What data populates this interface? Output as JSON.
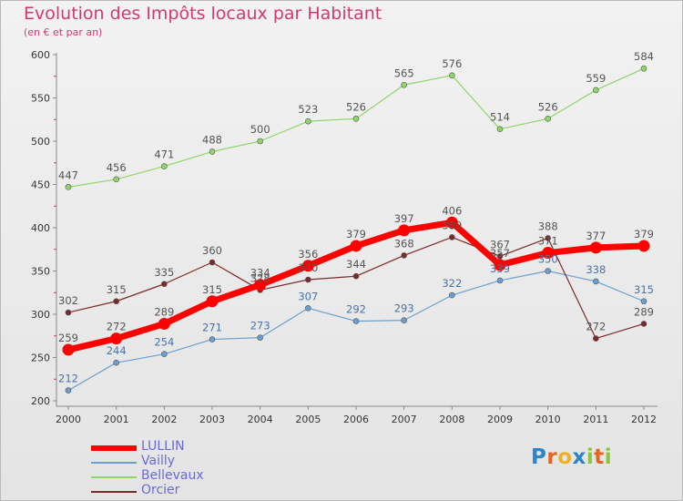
{
  "header": {
    "title": "Evolution des Impôts locaux par Habitant",
    "subtitle": "(en € et par an)"
  },
  "logo": {
    "letters": [
      "P",
      "r",
      "o",
      "x",
      "i",
      "t",
      "i"
    ],
    "colors": [
      "#2f83c9",
      "#e7611f",
      "#f0b120",
      "#2f83c9",
      "#8cc43e",
      "#e7611f",
      "#8cc43e"
    ]
  },
  "chart_data": {
    "type": "line",
    "title": "Evolution des Impôts locaux par Habitant",
    "subtitle": "(en € et par an)",
    "xlabel": "",
    "ylabel": "",
    "categories": [
      "2000",
      "2001",
      "2002",
      "2003",
      "2004",
      "2005",
      "2006",
      "2007",
      "2008",
      "2009",
      "2010",
      "2011",
      "2012"
    ],
    "ylim": [
      200,
      600
    ],
    "yticks": [
      200,
      250,
      300,
      350,
      400,
      450,
      500,
      550,
      600
    ],
    "grid": false,
    "legend_position": "bottom-left",
    "series": [
      {
        "name": "LULLIN",
        "color": "#ff0000",
        "values": [
          259,
          272,
          289,
          315,
          334,
          356,
          379,
          397,
          406,
          357,
          371,
          377,
          379
        ]
      },
      {
        "name": "Vailly",
        "color": "#6a9fd1",
        "values": [
          212,
          244,
          254,
          271,
          273,
          307,
          292,
          293,
          322,
          339,
          350,
          338,
          315
        ]
      },
      {
        "name": "Bellevaux",
        "color": "#8fd669",
        "values": [
          447,
          456,
          471,
          488,
          500,
          523,
          526,
          565,
          576,
          514,
          526,
          559,
          584
        ]
      },
      {
        "name": "Orcier",
        "color": "#7a2a2a",
        "values": [
          302,
          315,
          335,
          360,
          328,
          340,
          344,
          368,
          389,
          367,
          388,
          272,
          289
        ]
      }
    ]
  }
}
